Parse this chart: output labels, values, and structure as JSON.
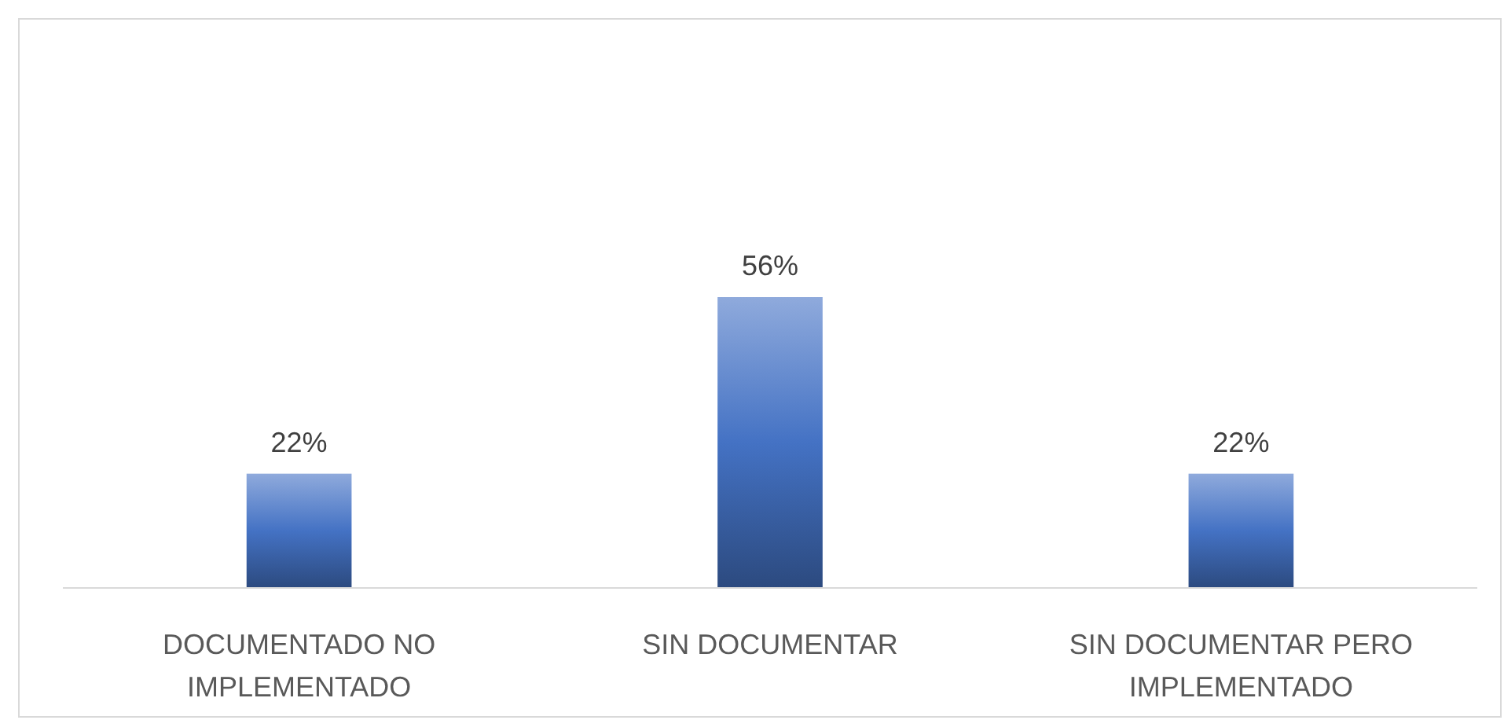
{
  "chart_data": {
    "type": "bar",
    "categories": [
      "DOCUMENTADO NO IMPLEMENTADO",
      "SIN DOCUMENTAR",
      "SIN DOCUMENTAR PERO IMPLEMENTADO"
    ],
    "values": [
      22,
      56,
      22
    ],
    "value_labels": [
      "22%",
      "56%",
      "22%"
    ],
    "color": "#4472c4"
  }
}
